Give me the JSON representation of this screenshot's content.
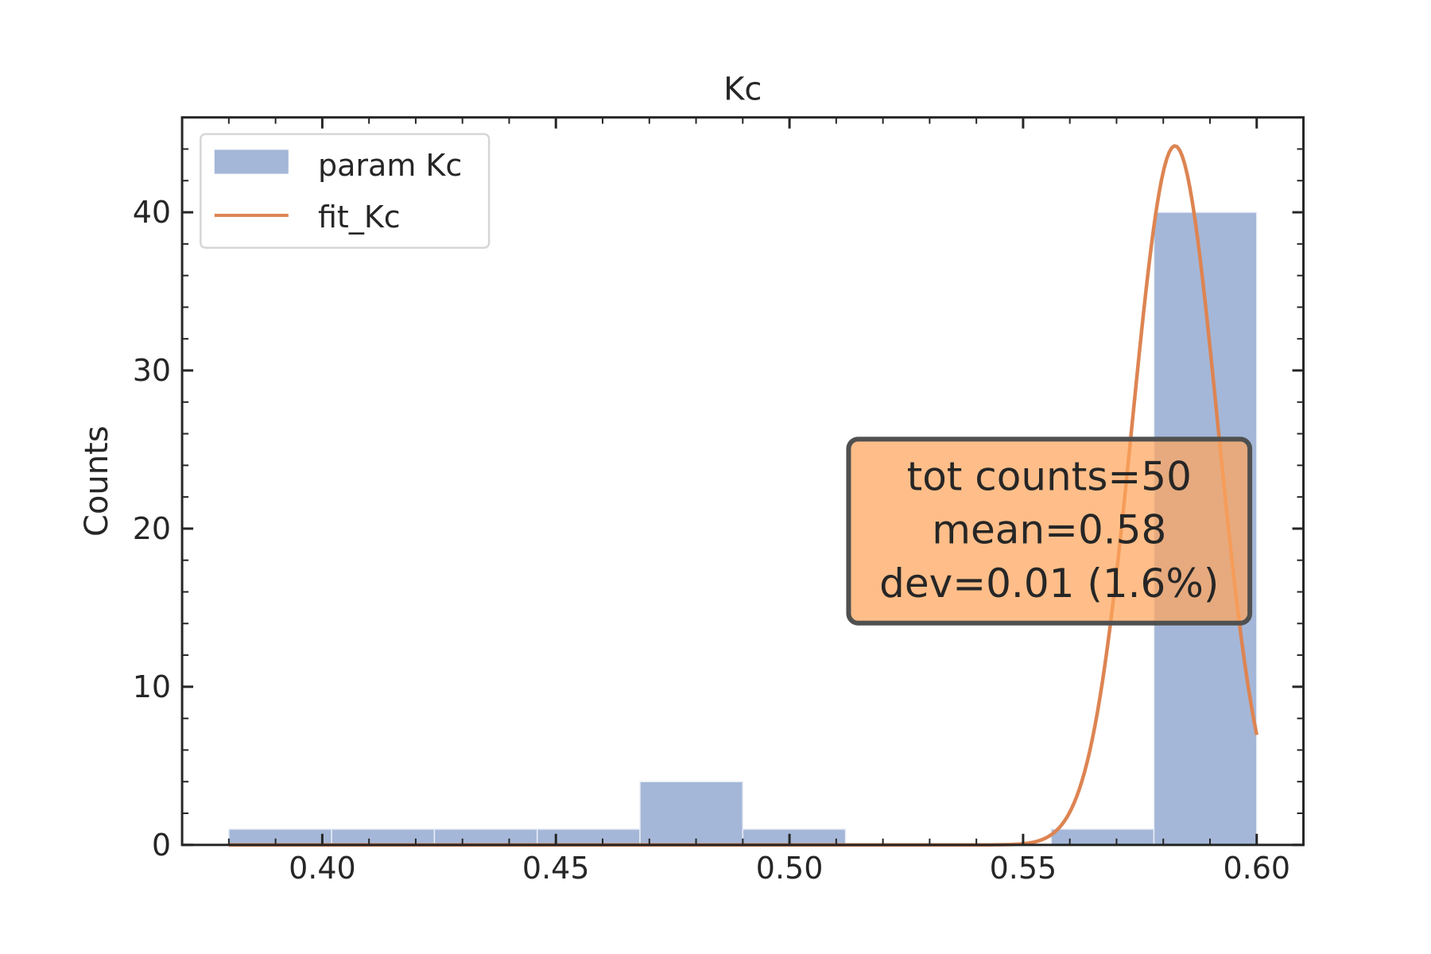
{
  "chart_data": {
    "type": "bar",
    "title": "Kc",
    "xlabel": "",
    "ylabel": "Counts",
    "xlim": [
      0.37,
      0.61
    ],
    "ylim": [
      0,
      46
    ],
    "xticks": [
      0.4,
      0.45,
      0.5,
      0.55,
      0.6
    ],
    "xtick_labels": [
      "0.40",
      "0.45",
      "0.50",
      "0.55",
      "0.60"
    ],
    "yticks": [
      0,
      10,
      20,
      30,
      40
    ],
    "ytick_labels": [
      "0",
      "10",
      "20",
      "30",
      "40"
    ],
    "grid": false,
    "legend_position": "top-left",
    "bins": [
      {
        "x0": 0.38,
        "x1": 0.402,
        "count": 1
      },
      {
        "x0": 0.402,
        "x1": 0.424,
        "count": 1
      },
      {
        "x0": 0.424,
        "x1": 0.446,
        "count": 1
      },
      {
        "x0": 0.446,
        "x1": 0.468,
        "count": 1
      },
      {
        "x0": 0.468,
        "x1": 0.49,
        "count": 4
      },
      {
        "x0": 0.49,
        "x1": 0.512,
        "count": 1
      },
      {
        "x0": 0.512,
        "x1": 0.534,
        "count": 0
      },
      {
        "x0": 0.534,
        "x1": 0.556,
        "count": 0
      },
      {
        "x0": 0.556,
        "x1": 0.578,
        "count": 1
      },
      {
        "x0": 0.578,
        "x1": 0.6,
        "count": 40
      }
    ],
    "fit": {
      "mean": 0.5825,
      "sigma": 0.0091,
      "amplitude": 44.2,
      "x_range": [
        0.38,
        0.6
      ]
    },
    "series": [
      {
        "name": "param Kc",
        "kind": "histogram",
        "color": "#a4b7d8"
      },
      {
        "name": "fit_Kc",
        "kind": "line",
        "color": "#dd8452"
      }
    ],
    "annotation": {
      "lines": [
        "tot counts=50",
        "mean=0.58",
        "dev=0.01 (1.6%)"
      ],
      "box_color": "#ffa55c",
      "edge_color": "#505050"
    }
  }
}
